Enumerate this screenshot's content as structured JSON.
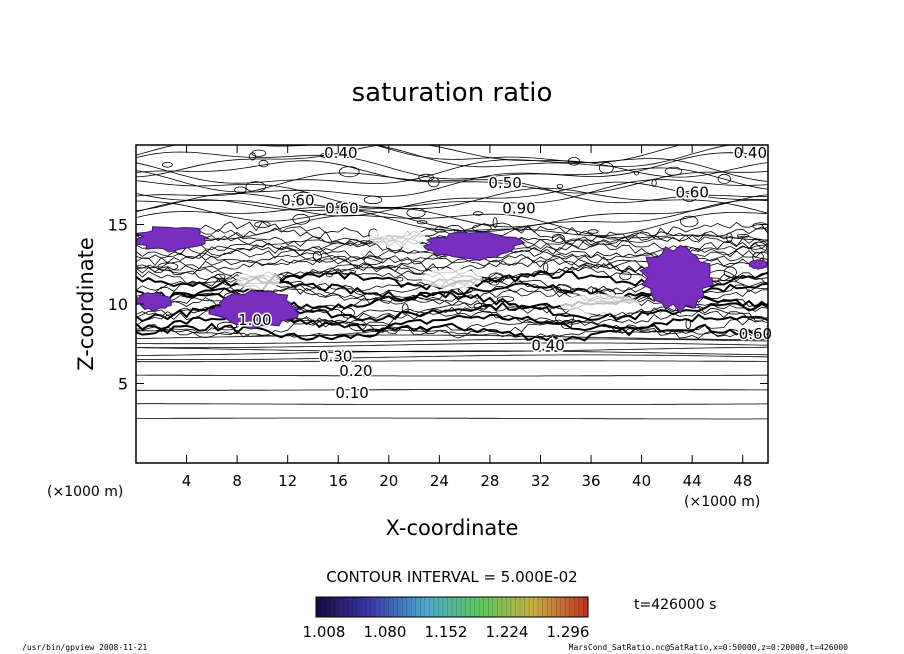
{
  "chart_data": {
    "type": "contour",
    "title": "saturation ratio",
    "xlabel": "X-coordinate",
    "ylabel": "Z-coordinate",
    "x_unit_left": "(×1000 m)",
    "x_unit_right": "(×1000 m)",
    "xlim": [
      0,
      50
    ],
    "ylim": [
      0,
      20
    ],
    "x_ticks": [
      4,
      8,
      12,
      16,
      20,
      24,
      28,
      32,
      36,
      40,
      44,
      48
    ],
    "y_ticks": [
      5,
      10,
      15
    ],
    "contour_interval_label": "CONTOUR INTERVAL = 5.000E-02",
    "time_label": "t=426000 s",
    "colorbar": {
      "ticks": [
        "1.008",
        "1.080",
        "1.152",
        "1.224",
        "1.296"
      ],
      "range": [
        1.0,
        1.3
      ],
      "colors": [
        "#1a0a40",
        "#3a3aa8",
        "#4aa8d0",
        "#5cc860",
        "#c8b040",
        "#c03020"
      ]
    },
    "contour_labels": [
      {
        "text": "0.40",
        "x": 16.2,
        "z": 19.5
      },
      {
        "text": "0.40",
        "x": 48.6,
        "z": 19.5
      },
      {
        "text": "0.60",
        "x": 12.8,
        "z": 16.5
      },
      {
        "text": "0.60",
        "x": 16.3,
        "z": 16.0
      },
      {
        "text": "0.50",
        "x": 29.2,
        "z": 17.6
      },
      {
        "text": "0.60",
        "x": 44.0,
        "z": 17.0
      },
      {
        "text": "0.90",
        "x": 30.3,
        "z": 16.0
      },
      {
        "text": "1.00",
        "x": 9.4,
        "z": 9.0
      },
      {
        "text": "0.30",
        "x": 15.8,
        "z": 6.7
      },
      {
        "text": "0.20",
        "x": 17.4,
        "z": 5.8
      },
      {
        "text": "0.10",
        "x": 17.1,
        "z": 4.4
      },
      {
        "text": "0.40",
        "x": 32.6,
        "z": 7.4
      },
      {
        "text": "0.60",
        "x": 49.0,
        "z": 8.1
      }
    ],
    "supersaturated_regions": [
      {
        "x": [
          0.0,
          5.8
        ],
        "z": [
          13.3,
          14.9
        ]
      },
      {
        "x": [
          0.0,
          2.8
        ],
        "z": [
          9.6,
          10.7
        ]
      },
      {
        "x": [
          6.0,
          13.0
        ],
        "z": [
          8.5,
          10.8
        ]
      },
      {
        "x": [
          23.0,
          30.5
        ],
        "z": [
          12.8,
          14.5
        ]
      },
      {
        "x": [
          40.0,
          45.5
        ],
        "z": [
          9.6,
          13.7
        ]
      },
      {
        "x": [
          48.5,
          50.0
        ],
        "z": [
          12.2,
          12.8
        ]
      }
    ],
    "grid": false
  },
  "footer": {
    "left": "/usr/bin/gpview   2008-11-21",
    "right": "MarsCond_SatRatio.nc@SatRatio,x=0:50000,z=0:20000,t=426000"
  }
}
